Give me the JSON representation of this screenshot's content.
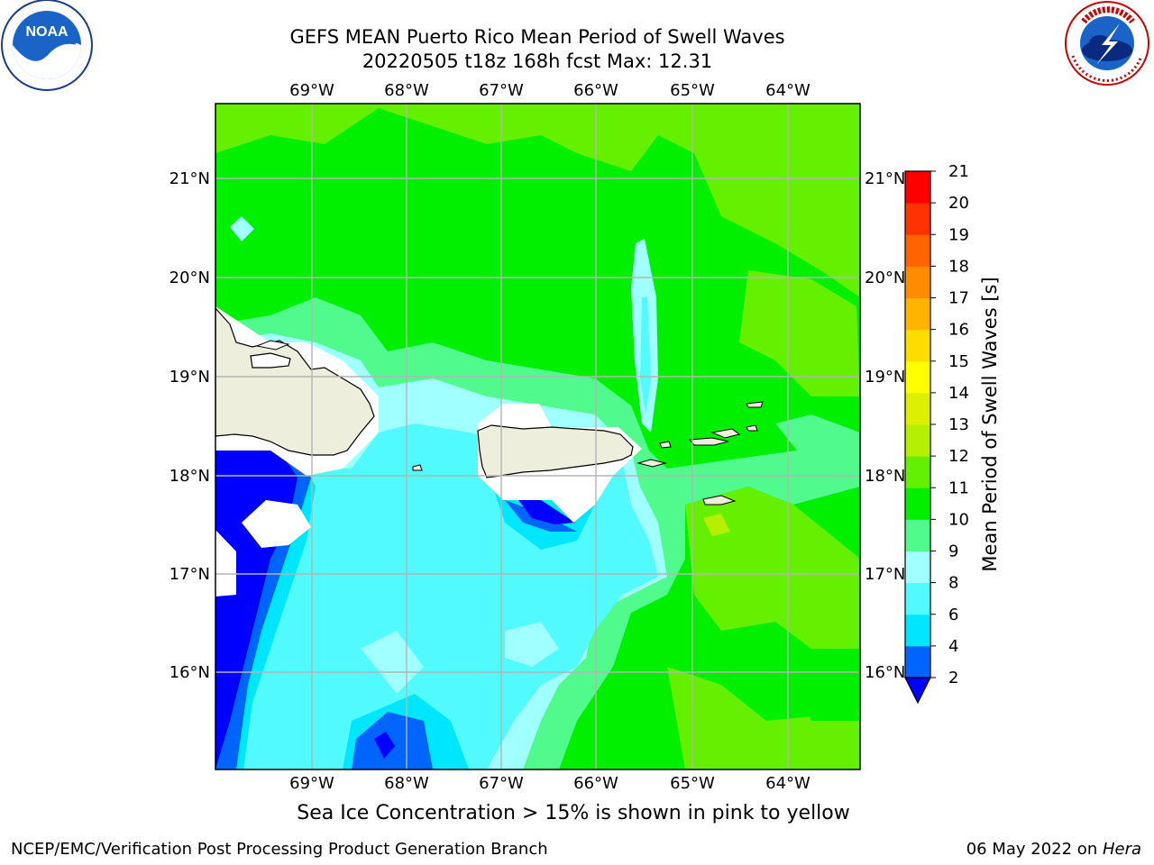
{
  "header": {
    "title_line1": "GEFS MEAN Puerto Rico Mean Period of Swell Waves",
    "title_line2": "20220505 t18z 168h fcst   Max: 12.31"
  },
  "map": {
    "lon_labels": [
      "69°W",
      "68°W",
      "67°W",
      "66°W",
      "65°W",
      "64°W"
    ],
    "lat_labels": [
      "21°N",
      "20°N",
      "19°N",
      "18°N",
      "17°N",
      "16°N"
    ],
    "land_color": "#eeeedc",
    "no_data_color": "#ffffff"
  },
  "colorbar": {
    "label": "Mean Period of Swell Waves [s]",
    "ticks": [
      "2",
      "4",
      "6",
      "8",
      "9",
      "10",
      "11",
      "12",
      "13",
      "14",
      "15",
      "16",
      "17",
      "18",
      "19",
      "20",
      "21"
    ],
    "colors": [
      "#0000ff",
      "#0064ff",
      "#00e6ff",
      "#50faff",
      "#a0ffff",
      "#50fa8c",
      "#00f000",
      "#64f000",
      "#b4f000",
      "#dcf000",
      "#ffff00",
      "#ffdc00",
      "#ffb400",
      "#ff8c00",
      "#ff6400",
      "#ff3200",
      "#ff0000"
    ]
  },
  "logos": {
    "noaa": "NOAA",
    "noaa_ring": "NATIONAL OCEANIC AND ATMOSPHERIC ADMINISTRATION · U.S. DEPARTMENT OF COMMERCE",
    "nws_ring": "NATIONAL WEATHER SERVICE"
  },
  "footer": {
    "caption": "Sea Ice Concentration > 15% is shown in pink to yellow",
    "credit": "NCEP/EMC/Verification Post Processing Product Generation Branch",
    "date_prefix": "06 May 2022 on ",
    "date_host": "Hera"
  }
}
